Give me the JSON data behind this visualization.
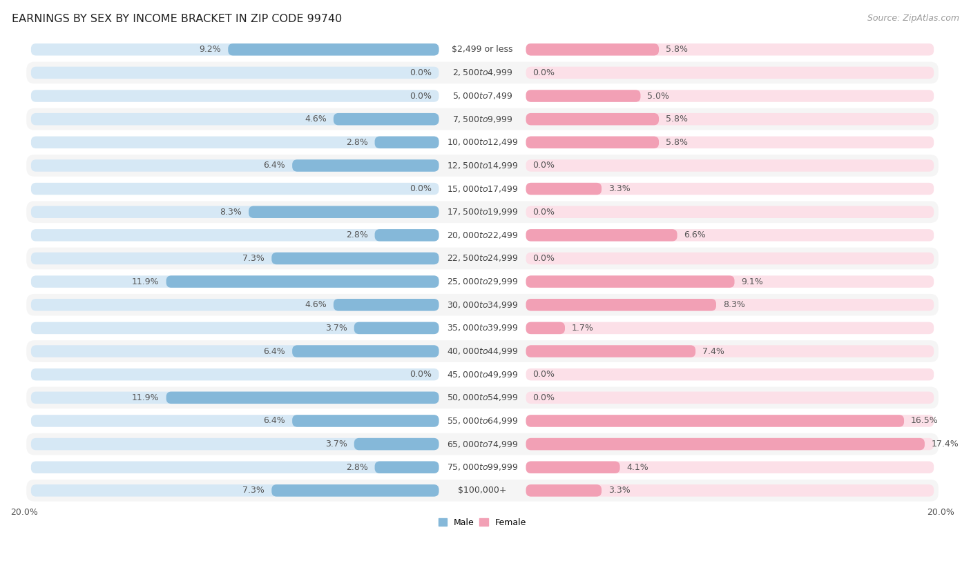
{
  "title": "EARNINGS BY SEX BY INCOME BRACKET IN ZIP CODE 99740",
  "source": "Source: ZipAtlas.com",
  "categories": [
    "$2,499 or less",
    "$2,500 to $4,999",
    "$5,000 to $7,499",
    "$7,500 to $9,999",
    "$10,000 to $12,499",
    "$12,500 to $14,999",
    "$15,000 to $17,499",
    "$17,500 to $19,999",
    "$20,000 to $22,499",
    "$22,500 to $24,999",
    "$25,000 to $29,999",
    "$30,000 to $34,999",
    "$35,000 to $39,999",
    "$40,000 to $44,999",
    "$45,000 to $49,999",
    "$50,000 to $54,999",
    "$55,000 to $64,999",
    "$65,000 to $74,999",
    "$75,000 to $99,999",
    "$100,000+"
  ],
  "male": [
    9.2,
    0.0,
    0.0,
    4.6,
    2.8,
    6.4,
    0.0,
    8.3,
    2.8,
    7.3,
    11.9,
    4.6,
    3.7,
    6.4,
    0.0,
    11.9,
    6.4,
    3.7,
    2.8,
    7.3
  ],
  "female": [
    5.8,
    0.0,
    5.0,
    5.8,
    5.8,
    0.0,
    3.3,
    0.0,
    6.6,
    0.0,
    9.1,
    8.3,
    1.7,
    7.4,
    0.0,
    0.0,
    16.5,
    17.4,
    4.1,
    3.3
  ],
  "male_color": "#85b8d9",
  "female_color": "#f2a0b5",
  "male_bg_color": "#d6e8f5",
  "female_bg_color": "#fce0e8",
  "axis_max": 20.0,
  "bg_color": "#ffffff",
  "row_alt_color": "#f5f5f5",
  "row_main_color": "#ffffff",
  "title_fontsize": 11.5,
  "label_fontsize": 9,
  "source_fontsize": 9,
  "axis_label_fontsize": 9,
  "value_fontsize": 9
}
